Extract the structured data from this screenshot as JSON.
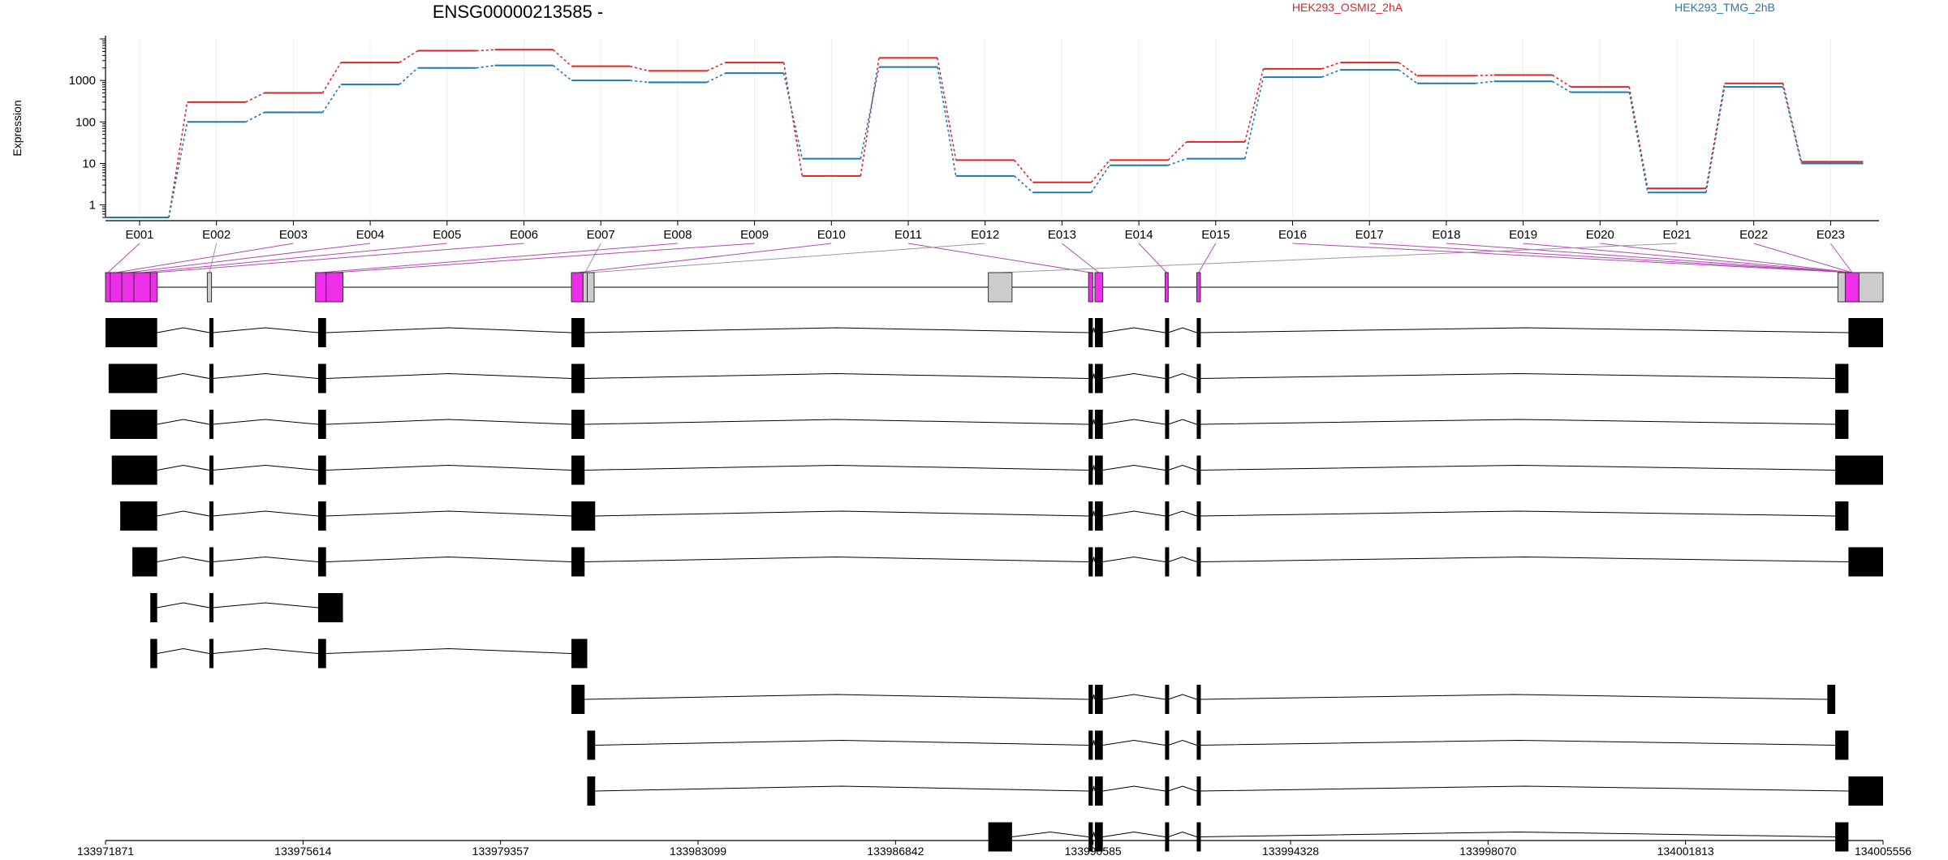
{
  "chart_data": {
    "type": "line",
    "title": "ENSG00000213585 -",
    "ylabel": "Expression",
    "y_scale": "log",
    "y_ticks": [
      1,
      10,
      100,
      1000
    ],
    "y_tick_labels": [
      "1",
      "10",
      "100",
      "1000"
    ],
    "ylim": [
      0.5,
      10000
    ],
    "grid": "vertical lines at exon centers",
    "legend_placement": "top-right",
    "categories": [
      "E001",
      "E002",
      "E003",
      "E004",
      "E005",
      "E006",
      "E007",
      "E008",
      "E009",
      "E010",
      "E011",
      "E012",
      "E013",
      "E014",
      "E015",
      "E016",
      "E017",
      "E018",
      "E019",
      "E020",
      "E021",
      "E022",
      "E023"
    ],
    "series": [
      {
        "name": "HEK293_OSMI2_2hA",
        "color": "#d62728",
        "values": [
          0.5,
          300,
          500,
          2700,
          5200,
          5500,
          2200,
          1700,
          2700,
          5,
          3500,
          12,
          3.5,
          12,
          33,
          1900,
          2700,
          1300,
          1350,
          700,
          2.5,
          850,
          11
        ]
      },
      {
        "name": "HEK293_TMG_2hB",
        "color": "#1f77b4",
        "values": [
          0.5,
          100,
          170,
          800,
          2000,
          2300,
          1000,
          900,
          1500,
          13,
          2100,
          5,
          2,
          9,
          13,
          1200,
          1800,
          850,
          950,
          520,
          2,
          700,
          10
        ]
      }
    ],
    "gene_axis": {
      "ticks": [
        "133971871",
        "133975614",
        "133979357",
        "133983099",
        "133986842",
        "133990585",
        "133994328",
        "133998070",
        "134001813",
        "134005556"
      ]
    },
    "exon_bins": [
      {
        "s": 133971871,
        "e": 133971960,
        "hl": true
      },
      {
        "s": 133971960,
        "e": 133972180,
        "hl": true
      },
      {
        "s": 133972180,
        "e": 133972410,
        "hl": true
      },
      {
        "s": 133972410,
        "e": 133972720,
        "hl": true
      },
      {
        "s": 133972720,
        "e": 133972850,
        "hl": true
      },
      {
        "s": 133973800,
        "e": 133973880,
        "hl": false
      },
      {
        "s": 133975850,
        "e": 133976050,
        "hl": true
      },
      {
        "s": 133976050,
        "e": 133976370,
        "hl": true
      },
      {
        "s": 133980700,
        "e": 133980920,
        "hl": true
      },
      {
        "s": 133980920,
        "e": 133981000,
        "hl": false
      },
      {
        "s": 133981000,
        "e": 133981130,
        "hl": false
      },
      {
        "s": 133988600,
        "e": 133989050,
        "hl": false
      },
      {
        "s": 133990500,
        "e": 133990580,
        "hl": true
      },
      {
        "s": 133990620,
        "e": 133990770,
        "hl": true
      },
      {
        "s": 133991950,
        "e": 133992010,
        "hl": true
      },
      {
        "s": 133992550,
        "e": 133992620,
        "hl": true
      },
      {
        "s": 134004700,
        "e": 134004840,
        "hl": false
      },
      {
        "s": 134004840,
        "e": 134005100,
        "hl": true
      },
      {
        "s": 134005100,
        "e": 134005556,
        "hl": false
      }
    ],
    "transcripts": [
      [
        [
          133971871,
          133972850
        ],
        [
          133973840,
          133973900
        ],
        [
          133975900,
          133976050
        ],
        [
          133980700,
          133980950
        ],
        [
          133990500,
          133990580
        ],
        [
          133990620,
          133990770
        ],
        [
          133991950,
          133992010
        ],
        [
          133992550,
          133992620
        ],
        [
          134004900,
          134005556
        ]
      ],
      [
        [
          133971930,
          133972850
        ],
        [
          133973840,
          133973900
        ],
        [
          133975900,
          133976050
        ],
        [
          133980700,
          133980950
        ],
        [
          133990500,
          133990580
        ],
        [
          133990620,
          133990770
        ],
        [
          133991950,
          133992010
        ],
        [
          133992550,
          133992620
        ],
        [
          134004650,
          134004900
        ]
      ],
      [
        [
          133971960,
          133972850
        ],
        [
          133973840,
          133973900
        ],
        [
          133975900,
          133976050
        ],
        [
          133980700,
          133980950
        ],
        [
          133990500,
          133990580
        ],
        [
          133990620,
          133990770
        ],
        [
          133991950,
          133992010
        ],
        [
          133992550,
          133992620
        ],
        [
          134004650,
          134004900
        ]
      ],
      [
        [
          133971990,
          133972850
        ],
        [
          133973840,
          133973900
        ],
        [
          133975900,
          133976050
        ],
        [
          133980700,
          133980950
        ],
        [
          133990500,
          133990580
        ],
        [
          133990620,
          133990770
        ],
        [
          133991950,
          133992010
        ],
        [
          133992550,
          133992620
        ],
        [
          134004650,
          134005556
        ]
      ],
      [
        [
          133972150,
          133972850
        ],
        [
          133973840,
          133973900
        ],
        [
          133975900,
          133976050
        ],
        [
          133980700,
          133981150
        ],
        [
          133990500,
          133990580
        ],
        [
          133990620,
          133990770
        ],
        [
          133991950,
          133992010
        ],
        [
          133992550,
          133992620
        ],
        [
          134004650,
          134004900
        ]
      ],
      [
        [
          133972380,
          133972850
        ],
        [
          133973840,
          133973900
        ],
        [
          133975900,
          133976050
        ],
        [
          133980700,
          133980950
        ],
        [
          133990500,
          133990580
        ],
        [
          133990620,
          133990770
        ],
        [
          133991950,
          133992010
        ],
        [
          133992550,
          133992620
        ],
        [
          134004900,
          134005556
        ]
      ],
      [
        [
          133972720,
          133972850
        ],
        [
          133973840,
          133973900
        ],
        [
          133975900,
          133976370
        ]
      ],
      [
        [
          133972720,
          133972850
        ],
        [
          133973840,
          133973900
        ],
        [
          133975900,
          133976050
        ],
        [
          133980700,
          133981000
        ]
      ],
      [
        [
          133980700,
          133980950
        ],
        [
          133990500,
          133990580
        ],
        [
          133990620,
          133990770
        ],
        [
          133991950,
          133992010
        ],
        [
          133992550,
          133992620
        ],
        [
          134004500,
          134004650
        ]
      ],
      [
        [
          133981000,
          133981150
        ],
        [
          133990500,
          133990580
        ],
        [
          133990620,
          133990770
        ],
        [
          133991950,
          133992010
        ],
        [
          133992550,
          133992620
        ],
        [
          134004650,
          134004900
        ]
      ],
      [
        [
          133981000,
          133981150
        ],
        [
          133990500,
          133990580
        ],
        [
          133990620,
          133990770
        ],
        [
          133991950,
          133992010
        ],
        [
          133992550,
          133992620
        ],
        [
          134004900,
          134005556
        ]
      ],
      [
        [
          133988600,
          133989050
        ],
        [
          133990500,
          133990580
        ],
        [
          133990620,
          133990770
        ],
        [
          133991950,
          133992010
        ],
        [
          133992550,
          133992620
        ],
        [
          134004650,
          134004900
        ]
      ]
    ]
  }
}
